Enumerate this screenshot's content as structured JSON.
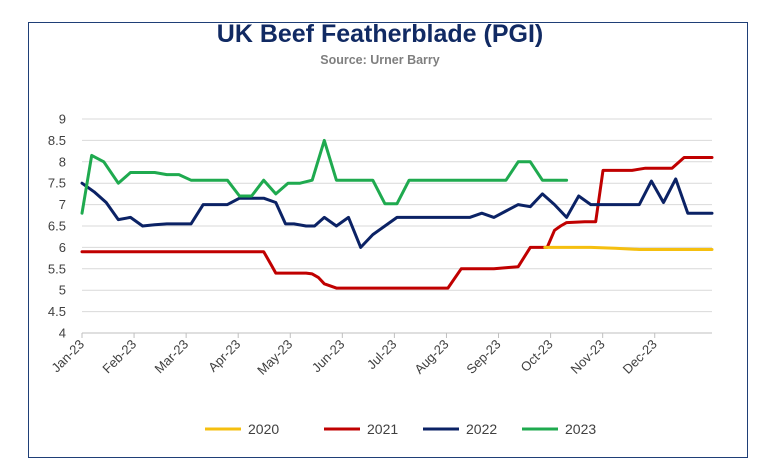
{
  "chart_data": {
    "type": "line",
    "title": "UK Beef Featherblade (PGI)",
    "subtitle": "Source: Urner Barry",
    "xlabel": "",
    "ylabel": "",
    "ylim": [
      4,
      9
    ],
    "y_ticks": [
      "4",
      "4.5",
      "5",
      "5.5",
      "6",
      "6.5",
      "7",
      "7.5",
      "8",
      "8.5",
      "9"
    ],
    "x_ticks": [
      "Jan-23",
      "Feb-23",
      "Mar-23",
      "Apr-23",
      "May-23",
      "Jun-23",
      "Jul-23",
      "Aug-23",
      "Sep-23",
      "Oct-23",
      "Nov-23",
      "Dec-23"
    ],
    "x_range_weeks": [
      0,
      52
    ],
    "grid": true,
    "legend_position": "bottom",
    "series": [
      {
        "name": "2020",
        "color": "#f5bf0f",
        "points": [
          [
            38.2,
            6.0
          ],
          [
            42,
            6.0
          ],
          [
            44,
            5.98
          ],
          [
            46,
            5.95
          ],
          [
            52,
            5.95
          ]
        ]
      },
      {
        "name": "2021",
        "color": "#c00000",
        "points": [
          [
            0,
            5.9
          ],
          [
            15,
            5.9
          ],
          [
            15.6,
            5.6
          ],
          [
            16,
            5.4
          ],
          [
            18.5,
            5.4
          ],
          [
            19,
            5.38
          ],
          [
            19.5,
            5.3
          ],
          [
            20,
            5.15
          ],
          [
            21,
            5.05
          ],
          [
            30.2,
            5.05
          ],
          [
            31.3,
            5.5
          ],
          [
            34,
            5.5
          ],
          [
            35.2,
            5.53
          ],
          [
            36,
            5.55
          ],
          [
            37,
            6.0
          ],
          [
            38.4,
            6.0
          ],
          [
            39,
            6.4
          ],
          [
            39.5,
            6.5
          ],
          [
            40,
            6.58
          ],
          [
            41.5,
            6.6
          ],
          [
            42.4,
            6.6
          ],
          [
            43,
            7.8
          ],
          [
            45.4,
            7.8
          ],
          [
            46.5,
            7.85
          ],
          [
            48.7,
            7.85
          ],
          [
            49.7,
            8.1
          ],
          [
            52,
            8.1
          ]
        ]
      },
      {
        "name": "2022",
        "color": "#0b2265",
        "points": [
          [
            0,
            7.5
          ],
          [
            1,
            7.3
          ],
          [
            2,
            7.05
          ],
          [
            3,
            6.65
          ],
          [
            4,
            6.7
          ],
          [
            5,
            6.5
          ],
          [
            6,
            6.53
          ],
          [
            7,
            6.55
          ],
          [
            8,
            6.55
          ],
          [
            9,
            6.55
          ],
          [
            10,
            7.0
          ],
          [
            11,
            7.0
          ],
          [
            12,
            7.0
          ],
          [
            13,
            7.15
          ],
          [
            14,
            7.15
          ],
          [
            15,
            7.15
          ],
          [
            16,
            7.05
          ],
          [
            16.8,
            6.55
          ],
          [
            17.5,
            6.55
          ],
          [
            18.5,
            6.5
          ],
          [
            19.2,
            6.5
          ],
          [
            20,
            6.7
          ],
          [
            21,
            6.5
          ],
          [
            22,
            6.7
          ],
          [
            23,
            6.0
          ],
          [
            24,
            6.3
          ],
          [
            25,
            6.5
          ],
          [
            26,
            6.7
          ],
          [
            27,
            6.7
          ],
          [
            28,
            6.7
          ],
          [
            29,
            6.7
          ],
          [
            30,
            6.7
          ],
          [
            31,
            6.7
          ],
          [
            32,
            6.7
          ],
          [
            33,
            6.8
          ],
          [
            34,
            6.7
          ],
          [
            35,
            6.85
          ],
          [
            36,
            7.0
          ],
          [
            37,
            6.95
          ],
          [
            38,
            7.25
          ],
          [
            39,
            7.0
          ],
          [
            40,
            6.7
          ],
          [
            41,
            7.2
          ],
          [
            42,
            7.0
          ],
          [
            43,
            7.0
          ],
          [
            44,
            7.0
          ],
          [
            45,
            7.0
          ],
          [
            46,
            7.0
          ],
          [
            47,
            7.55
          ],
          [
            48,
            7.05
          ],
          [
            49,
            7.6
          ],
          [
            50,
            6.8
          ],
          [
            51,
            6.8
          ],
          [
            52,
            6.8
          ]
        ]
      },
      {
        "name": "2023",
        "color": "#1faa4f",
        "points": [
          [
            0,
            6.8
          ],
          [
            0.8,
            8.15
          ],
          [
            1.8,
            8.0
          ],
          [
            3,
            7.5
          ],
          [
            4,
            7.75
          ],
          [
            5,
            7.75
          ],
          [
            6,
            7.75
          ],
          [
            7,
            7.7
          ],
          [
            8,
            7.7
          ],
          [
            9,
            7.57
          ],
          [
            10,
            7.57
          ],
          [
            11,
            7.57
          ],
          [
            12,
            7.57
          ],
          [
            13,
            7.2
          ],
          [
            14,
            7.2
          ],
          [
            15,
            7.57
          ],
          [
            16,
            7.25
          ],
          [
            17,
            7.5
          ],
          [
            18,
            7.5
          ],
          [
            19,
            7.57
          ],
          [
            20,
            8.5
          ],
          [
            21,
            7.57
          ],
          [
            22,
            7.57
          ],
          [
            23,
            7.57
          ],
          [
            24,
            7.57
          ],
          [
            25,
            7.02
          ],
          [
            26,
            7.02
          ],
          [
            27,
            7.57
          ],
          [
            28,
            7.57
          ],
          [
            30,
            7.57
          ],
          [
            32,
            7.57
          ],
          [
            34,
            7.57
          ],
          [
            35,
            7.57
          ],
          [
            36,
            8.0
          ],
          [
            37,
            8.0
          ],
          [
            38,
            7.57
          ],
          [
            39,
            7.57
          ],
          [
            40,
            7.57
          ]
        ]
      }
    ]
  }
}
